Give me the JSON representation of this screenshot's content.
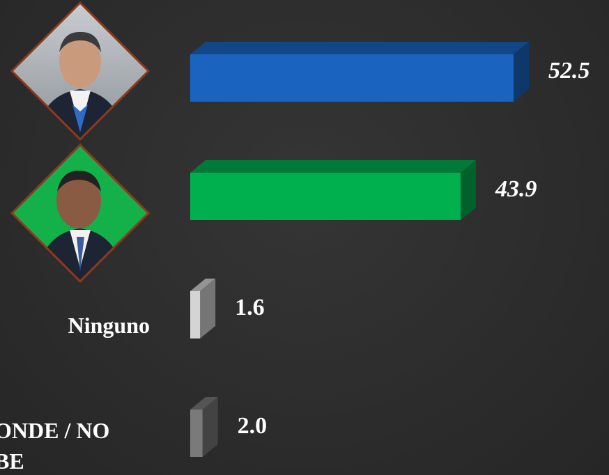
{
  "chart_data": {
    "type": "bar",
    "orientation": "horizontal",
    "categories": [
      null,
      null,
      "Ninguno",
      "ONDE / NO BE"
    ],
    "values": [
      52.5,
      43.9,
      1.6,
      2.0
    ],
    "value_labels": [
      "52.5",
      "43.9",
      "1.6",
      "2.0"
    ],
    "colors": [
      "#1a64c0",
      "#00b04f",
      "#d4d4d4",
      "#7a7a7a"
    ]
  }
}
